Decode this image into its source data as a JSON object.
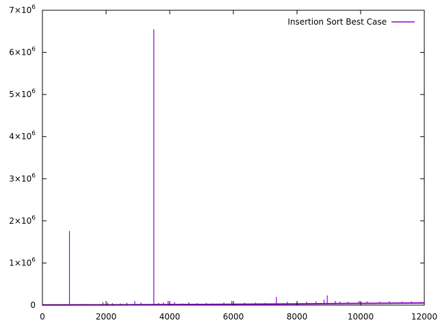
{
  "chart_data": {
    "type": "line",
    "title": "",
    "xlabel": "",
    "ylabel": "",
    "xlim": [
      0,
      12000
    ],
    "ylim": [
      0,
      7000000
    ],
    "grid": false,
    "legend_position": "top-right",
    "x_ticks": [
      {
        "value": 0,
        "label": "0"
      },
      {
        "value": 2000,
        "label": "2000"
      },
      {
        "value": 4000,
        "label": "4000"
      },
      {
        "value": 6000,
        "label": "6000"
      },
      {
        "value": 8000,
        "label": "8000"
      },
      {
        "value": 10000,
        "label": "10000"
      },
      {
        "value": 12000,
        "label": "12000"
      }
    ],
    "y_ticks": [
      {
        "value": 0,
        "label": "0"
      },
      {
        "value": 1000000,
        "label": "1×10",
        "exp": "6"
      },
      {
        "value": 2000000,
        "label": "2×10",
        "exp": "6"
      },
      {
        "value": 3000000,
        "label": "3×10",
        "exp": "6"
      },
      {
        "value": 4000000,
        "label": "4×10",
        "exp": "6"
      },
      {
        "value": 5000000,
        "label": "5×10",
        "exp": "6"
      },
      {
        "value": 6000000,
        "label": "6×10",
        "exp": "6"
      },
      {
        "value": 7000000,
        "label": "7×10",
        "exp": "6"
      }
    ],
    "series": [
      {
        "name": "Insertion Sort Best Case",
        "color": "#9400d3",
        "baseline": [
          [
            0,
            4000
          ],
          [
            2000,
            6000
          ],
          [
            4000,
            12000
          ],
          [
            6000,
            20000
          ],
          [
            8000,
            30000
          ],
          [
            10000,
            40000
          ],
          [
            12000,
            50000
          ]
        ],
        "spikes": [
          [
            850,
            1760000
          ],
          [
            1100,
            25000
          ],
          [
            1350,
            30000
          ],
          [
            1600,
            25000
          ],
          [
            1900,
            70000
          ],
          [
            2050,
            55000
          ],
          [
            2200,
            45000
          ],
          [
            2450,
            40000
          ],
          [
            2650,
            55000
          ],
          [
            2900,
            95000
          ],
          [
            3100,
            60000
          ],
          [
            3500,
            6550000
          ],
          [
            3650,
            50000
          ],
          [
            3800,
            60000
          ],
          [
            3950,
            100000
          ],
          [
            4150,
            70000
          ],
          [
            4400,
            40000
          ],
          [
            4600,
            65000
          ],
          [
            4850,
            45000
          ],
          [
            5150,
            50000
          ],
          [
            5350,
            40000
          ],
          [
            5700,
            60000
          ],
          [
            5950,
            100000
          ],
          [
            6350,
            55000
          ],
          [
            6700,
            60000
          ],
          [
            7000,
            55000
          ],
          [
            7350,
            195000
          ],
          [
            7700,
            80000
          ],
          [
            8000,
            75000
          ],
          [
            8300,
            80000
          ],
          [
            8600,
            90000
          ],
          [
            8850,
            130000
          ],
          [
            8950,
            230000
          ],
          [
            9200,
            100000
          ],
          [
            9350,
            85000
          ],
          [
            9600,
            80000
          ],
          [
            9950,
            100000
          ],
          [
            10200,
            90000
          ],
          [
            10600,
            85000
          ],
          [
            10900,
            90000
          ],
          [
            11300,
            85000
          ],
          [
            11600,
            90000
          ],
          [
            11900,
            80000
          ]
        ]
      }
    ]
  }
}
